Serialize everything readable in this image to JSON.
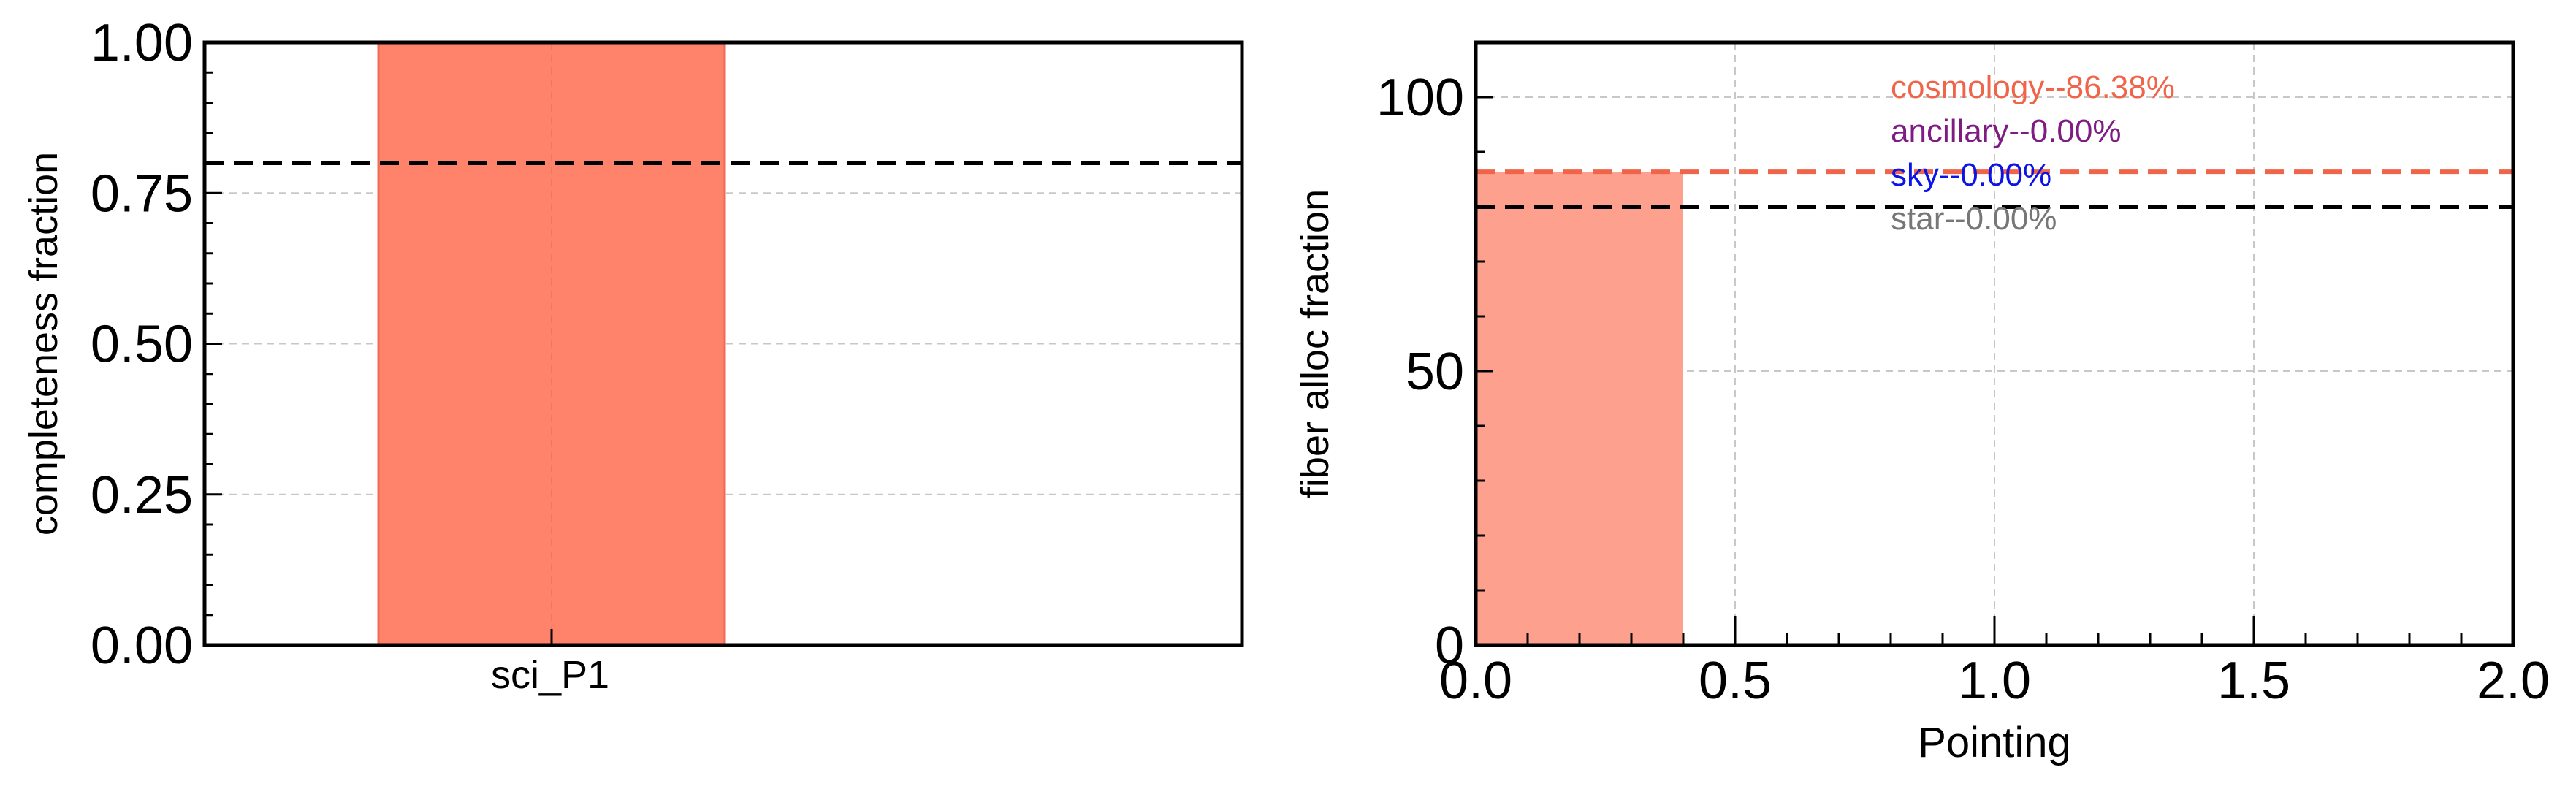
{
  "chart_data": [
    {
      "type": "bar",
      "categories": [
        "sci_P1"
      ],
      "values": [
        1.0
      ],
      "xlabel": "",
      "ylabel": "completeness fraction",
      "ylim": [
        0,
        1.0
      ],
      "yticks": [
        "0.00",
        "0.25",
        "0.50",
        "0.75",
        "1.00"
      ],
      "reference_line": 0.8,
      "bar_color": "#ff826b",
      "grid": true
    },
    {
      "type": "bar",
      "x": [
        0.2
      ],
      "values": [
        86.38
      ],
      "xlabel": "Pointing",
      "ylabel": "fiber alloc fraction",
      "xlim": [
        0.0,
        2.0
      ],
      "ylim": [
        0,
        110
      ],
      "xticks": [
        "0.0",
        "0.5",
        "1.0",
        "1.5",
        "2.0"
      ],
      "yticks": [
        "0",
        "50",
        "100"
      ],
      "reference_lines": [
        {
          "value": 86.38,
          "color": "#f0644a"
        },
        {
          "value": 80,
          "color": "#000000"
        }
      ],
      "bar_color": "#fea08e",
      "grid": true,
      "annotations": [
        {
          "text": "cosmology--86.38%",
          "color": "#f0644a"
        },
        {
          "text": "ancillary--0.00%",
          "color": "#7f1c84"
        },
        {
          "text": "sky--0.00%",
          "color": "#0a14e6"
        },
        {
          "text": "star--0.00%",
          "color": "#777777"
        }
      ]
    }
  ]
}
